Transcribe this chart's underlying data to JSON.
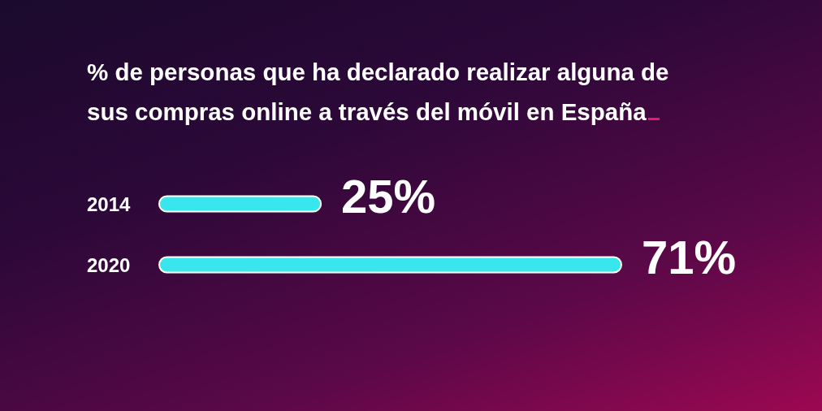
{
  "chart_data": {
    "type": "bar",
    "orientation": "horizontal",
    "title": "% de personas que ha declarado realizar alguna de sus compras online a través del móvil en España",
    "categories": [
      "2014",
      "2020"
    ],
    "values": [
      25,
      71
    ],
    "value_labels": [
      "25%",
      "71%"
    ],
    "color": "#3ae6ee",
    "tick_labels": "y"
  }
}
